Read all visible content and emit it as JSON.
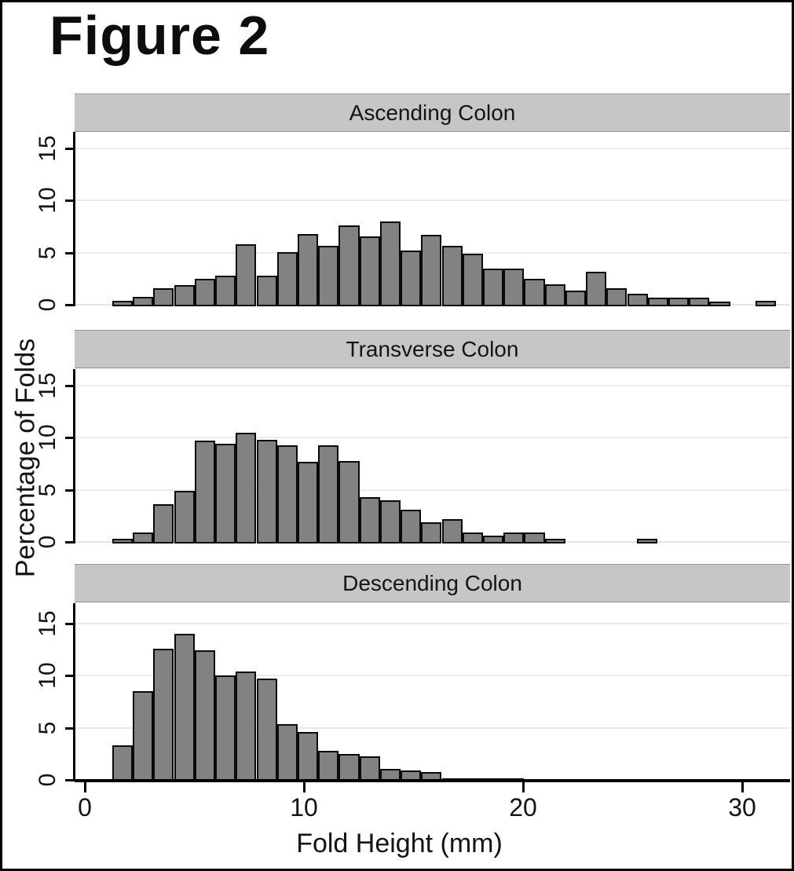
{
  "figure": {
    "title": "Figure 2"
  },
  "axes": {
    "x_label": "Fold Height (mm)",
    "y_label": "Percentage of Folds",
    "x_tick_labels": [
      "0",
      "10",
      "20",
      "30"
    ],
    "y_tick_labels": [
      "0",
      "5",
      "10",
      "15"
    ]
  },
  "colors": {
    "bar_fill": "#828282",
    "bar_border": "#0a0a0a",
    "header_bg": "#c6c6c6",
    "gridline": "#ebebeb",
    "axis": "#000000"
  },
  "chart_data": [
    {
      "type": "bar",
      "subtype": "histogram",
      "title": "Ascending Colon",
      "xlabel": "Fold Height (mm)",
      "ylabel": "Percentage of Folds",
      "bin_start_mm": 1.25,
      "bin_width_mm": 0.94,
      "values_percent": [
        0.3,
        0.7,
        1.5,
        1.8,
        2.4,
        2.7,
        5.7,
        2.7,
        5.0,
        6.7,
        5.6,
        7.5,
        6.5,
        7.9,
        5.1,
        6.6,
        5.6,
        4.8,
        3.4,
        3.4,
        2.4,
        1.9,
        1.3,
        3.1,
        1.5,
        1.0,
        0.6,
        0.6,
        0.6,
        0.2
      ],
      "isolated_bar": {
        "x_mm": 30.6,
        "value_percent": 0.3
      },
      "x_ticks": [
        0,
        10,
        20,
        30
      ],
      "y_ticks": [
        0,
        5,
        10,
        15
      ],
      "xlim": [
        -0.5,
        32.2
      ],
      "ylim": [
        0,
        16.5
      ],
      "grid": "horizontal"
    },
    {
      "type": "bar",
      "subtype": "histogram",
      "title": "Transverse Colon",
      "xlabel": "Fold Height (mm)",
      "ylabel": "Percentage of Folds",
      "bin_start_mm": 1.25,
      "bin_width_mm": 0.94,
      "values_percent": [
        0.2,
        0.8,
        3.5,
        4.8,
        9.6,
        9.3,
        10.4,
        9.7,
        9.2,
        7.6,
        9.2,
        7.7,
        4.2,
        3.9,
        3.0,
        1.8,
        2.1,
        0.8,
        0.5,
        0.8,
        0.8,
        0.2
      ],
      "isolated_bar": {
        "x_mm": 25.2,
        "value_percent": 0.25
      },
      "x_ticks": [
        0,
        10,
        20,
        30
      ],
      "y_ticks": [
        0,
        5,
        10,
        15
      ],
      "xlim": [
        -0.5,
        32.2
      ],
      "ylim": [
        0,
        16.5
      ],
      "grid": "horizontal"
    },
    {
      "type": "bar",
      "subtype": "histogram",
      "title": "Descending Colon",
      "xlabel": "Fold Height (mm)",
      "ylabel": "Percentage of Folds",
      "bin_start_mm": 1.25,
      "bin_width_mm": 0.94,
      "values_percent": [
        3.2,
        8.4,
        12.5,
        13.9,
        12.3,
        9.9,
        10.3,
        9.6,
        5.3,
        4.5,
        2.7,
        2.4,
        2.2,
        1.0,
        0.8,
        0.65,
        0.1,
        0.1,
        0.1,
        0.1
      ],
      "isolated_bar": null,
      "x_ticks": [
        0,
        10,
        20,
        30
      ],
      "y_ticks": [
        0,
        5,
        10,
        15
      ],
      "xlim": [
        -0.5,
        32.2
      ],
      "ylim": [
        0,
        16.5
      ],
      "grid": "horizontal"
    }
  ]
}
